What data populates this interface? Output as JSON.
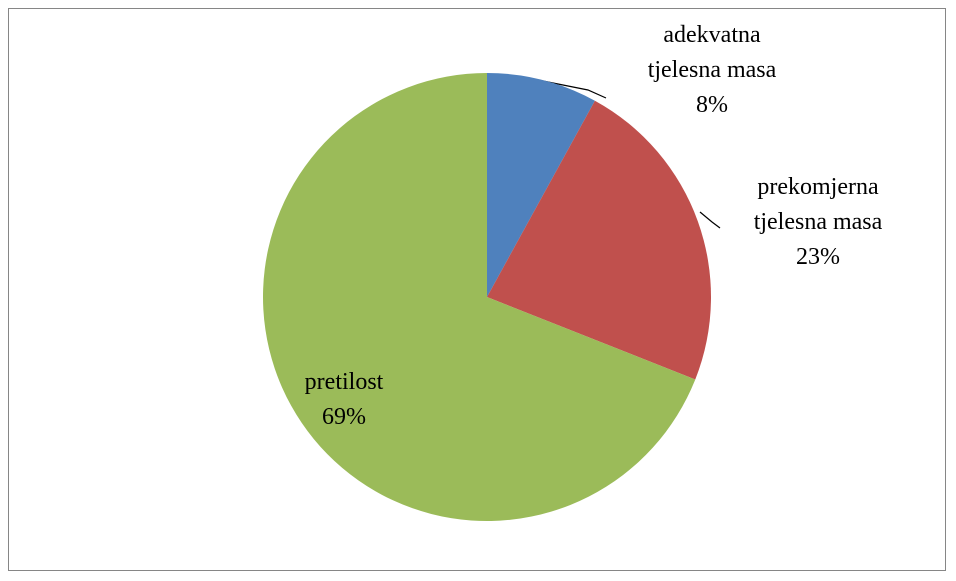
{
  "chart_data": {
    "type": "pie",
    "categories": [
      "adekvatna tjelesna masa",
      "prekomjerna tjelesna masa",
      "pretilost"
    ],
    "values": [
      8,
      23,
      69
    ],
    "value_labels": [
      "8%",
      "23%",
      "69%"
    ],
    "colors": [
      "#4f81bd",
      "#c0504d",
      "#9bbb59"
    ]
  }
}
